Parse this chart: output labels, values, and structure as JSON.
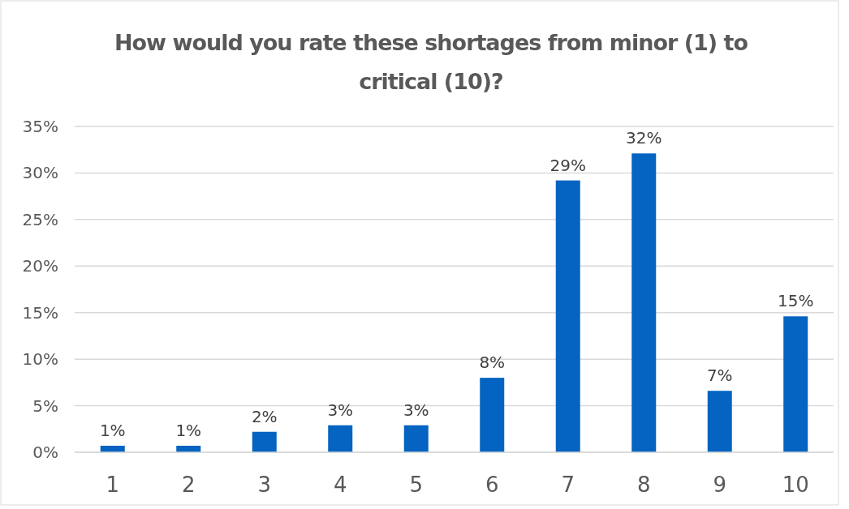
{
  "chart_data": {
    "type": "bar",
    "title": "How would you rate these shortages from minor (1) to critical (10)?",
    "categories": [
      "1",
      "2",
      "3",
      "4",
      "5",
      "6",
      "7",
      "8",
      "9",
      "10"
    ],
    "values": [
      0.7,
      0.7,
      2.2,
      2.9,
      2.9,
      8,
      29.2,
      32.1,
      6.6,
      14.6
    ],
    "value_labels": [
      "1%",
      "1%",
      "2%",
      "3%",
      "3%",
      "8%",
      "29%",
      "32%",
      "7%",
      "15%"
    ],
    "color": "#0563c1",
    "ylim": [
      0,
      35
    ],
    "yticks": [
      {
        "value": 0,
        "label": "0%"
      },
      {
        "value": 5,
        "label": "5%"
      },
      {
        "value": 10,
        "label": "10%"
      },
      {
        "value": 15,
        "label": "15%"
      },
      {
        "value": 20,
        "label": "20%"
      },
      {
        "value": 25,
        "label": "25%"
      },
      {
        "value": 30,
        "label": "30%"
      },
      {
        "value": 35,
        "label": "35%"
      }
    ],
    "grid": "y"
  }
}
